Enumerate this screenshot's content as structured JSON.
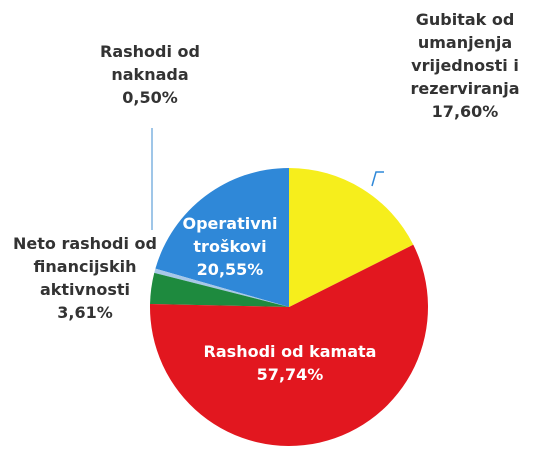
{
  "chart_data": {
    "type": "pie",
    "categories": [
      "Gubitak od umanjenja vrijednosti i rezerviranja",
      "Rashodi od kamata",
      "Neto rashodi od financijskih aktivnosti",
      "Rashodi od naknada",
      "Operativni troškovi"
    ],
    "values": [
      17.6,
      57.74,
      3.61,
      0.5,
      20.55
    ],
    "value_labels": [
      "17,60%",
      "57,74%",
      "3,61%",
      "0,50%",
      "20,55%"
    ],
    "colors": [
      "#f6ee1c",
      "#e2171f",
      "#1e8a3e",
      "#a7c8e8",
      "#2f88d8"
    ]
  }
}
